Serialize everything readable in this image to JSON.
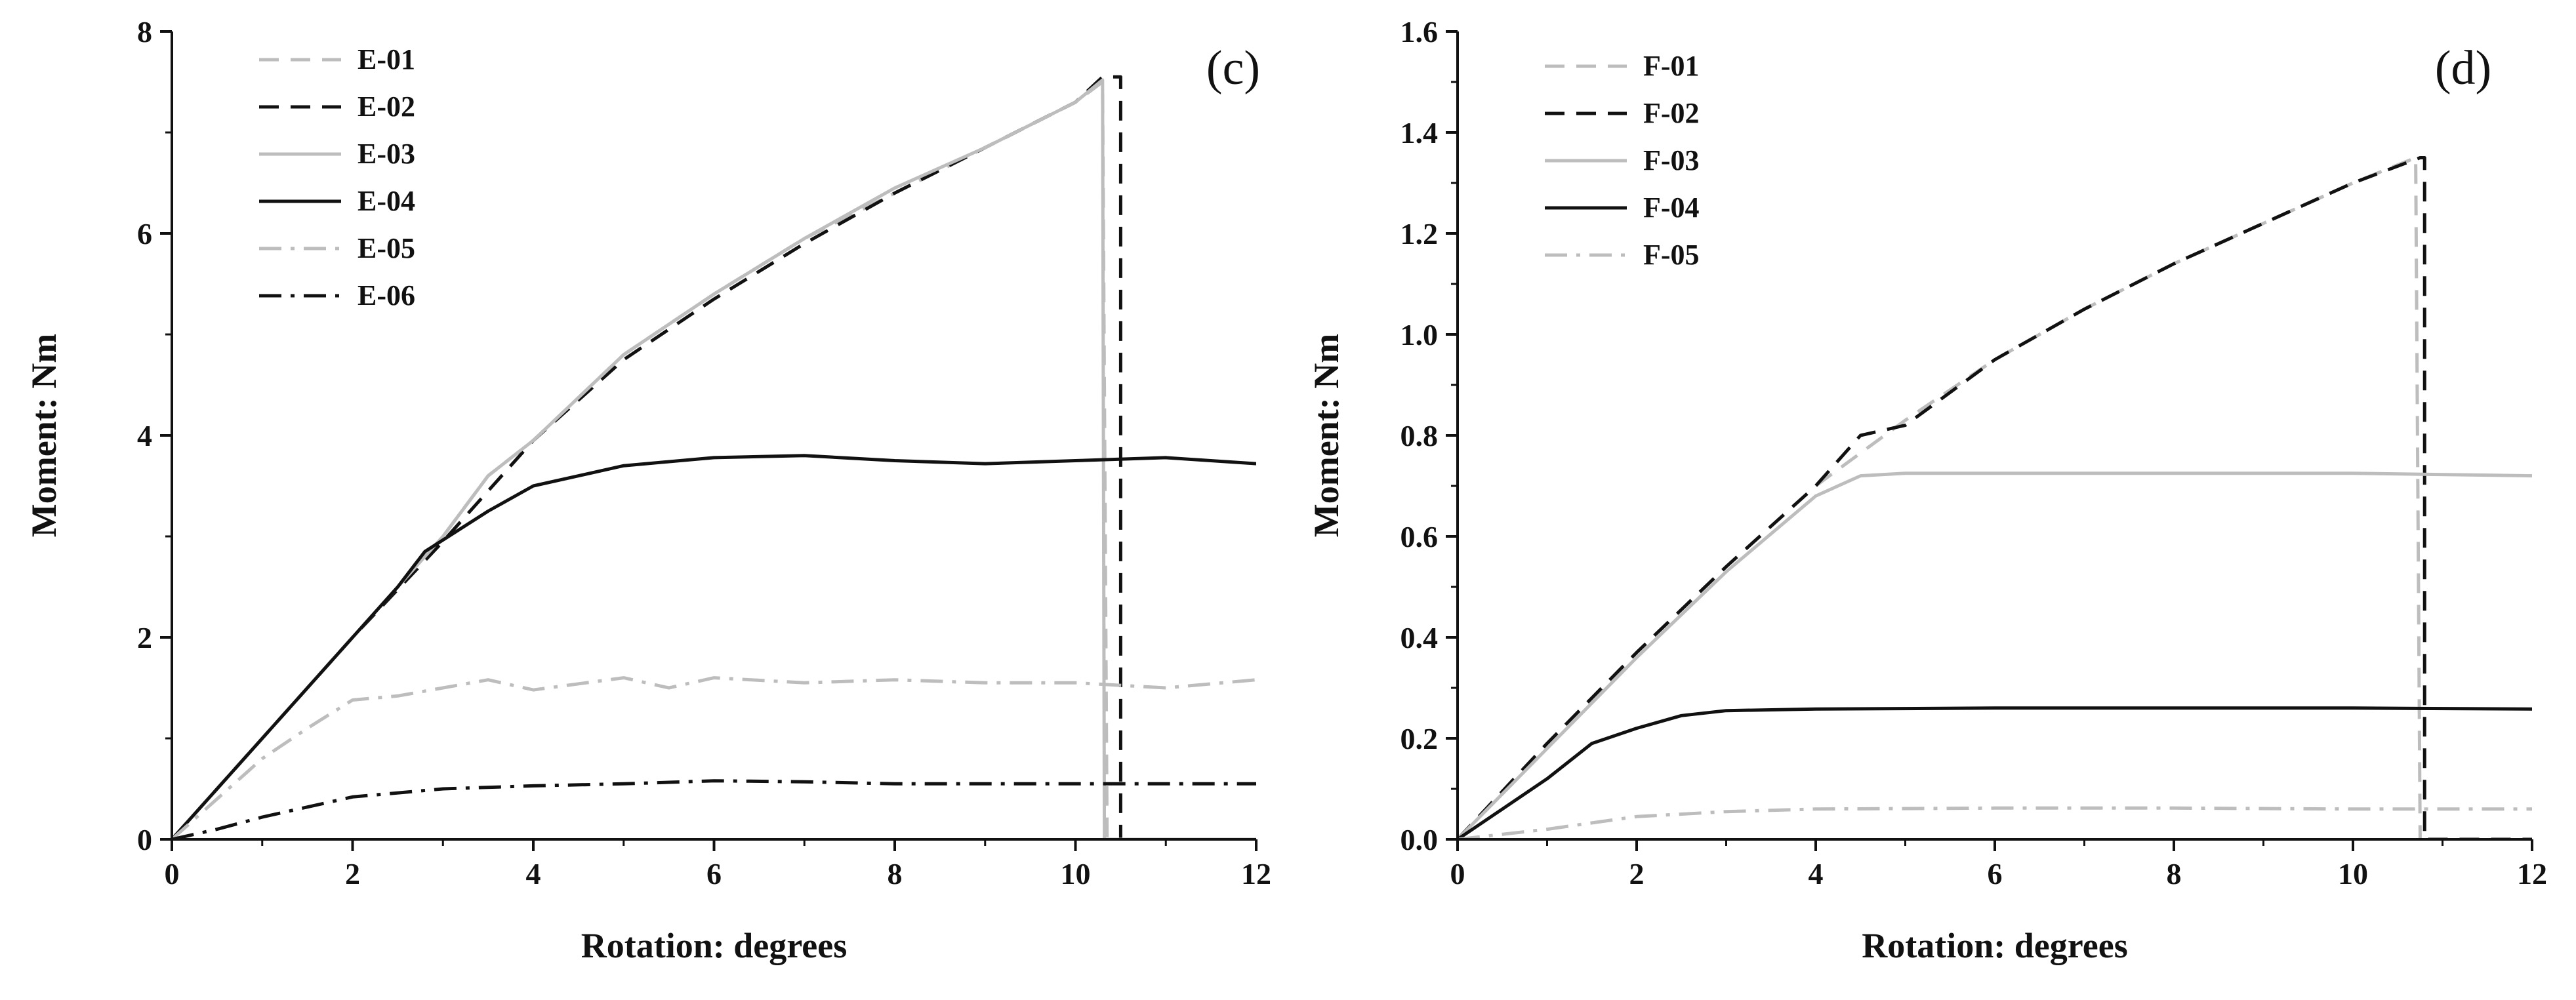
{
  "chart_data": [
    {
      "type": "line",
      "panel_label": "(c)",
      "xlabel": "Rotation: degrees",
      "ylabel": "Moment: Nm",
      "xlim": [
        0,
        12
      ],
      "ylim": [
        0,
        8
      ],
      "xticks": [
        0,
        2,
        4,
        6,
        8,
        10,
        12
      ],
      "yticks": [
        0,
        2,
        4,
        6,
        8
      ],
      "xtick_labels": [
        "0",
        "2",
        "4",
        "6",
        "8",
        "10",
        "12"
      ],
      "ytick_labels": [
        "0",
        "2",
        "4",
        "6",
        "8"
      ],
      "legend_position": "top-left",
      "series": [
        {
          "name": "E-01",
          "color": "#bdbdbd",
          "style": "dashed",
          "points": [
            [
              0,
              0
            ],
            [
              1,
              1.0
            ],
            [
              2,
              2.0
            ],
            [
              3,
              3.0
            ],
            [
              3.5,
              3.6
            ],
            [
              4,
              3.95
            ],
            [
              5,
              4.8
            ],
            [
              6,
              5.4
            ],
            [
              7,
              5.95
            ],
            [
              8,
              6.4
            ],
            [
              9,
              6.85
            ],
            [
              10,
              7.3
            ],
            [
              10.3,
              7.5
            ],
            [
              10.35,
              0
            ]
          ]
        },
        {
          "name": "E-02",
          "color": "#111111",
          "style": "dashed",
          "points": [
            [
              0,
              0
            ],
            [
              1,
              1.0
            ],
            [
              2,
              2.0
            ],
            [
              3,
              2.95
            ],
            [
              4,
              3.95
            ],
            [
              5,
              4.75
            ],
            [
              6,
              5.35
            ],
            [
              7,
              5.9
            ],
            [
              8,
              6.4
            ],
            [
              9,
              6.85
            ],
            [
              10,
              7.3
            ],
            [
              10.3,
              7.55
            ],
            [
              10.5,
              7.55
            ],
            [
              10.5,
              0
            ]
          ]
        },
        {
          "name": "E-03",
          "color": "#bdbdbd",
          "style": "solid",
          "points": [
            [
              0,
              0
            ],
            [
              1,
              1.0
            ],
            [
              2,
              2.0
            ],
            [
              3,
              3.0
            ],
            [
              3.5,
              3.6
            ],
            [
              4,
              3.95
            ],
            [
              5,
              4.8
            ],
            [
              6,
              5.4
            ],
            [
              7,
              5.95
            ],
            [
              8,
              6.45
            ],
            [
              9,
              6.85
            ],
            [
              10,
              7.3
            ],
            [
              10.3,
              7.52
            ],
            [
              10.32,
              0
            ],
            [
              12,
              0
            ]
          ]
        },
        {
          "name": "E-04",
          "color": "#111111",
          "style": "solid",
          "points": [
            [
              0,
              0
            ],
            [
              1,
              1.0
            ],
            [
              2,
              2.0
            ],
            [
              2.5,
              2.5
            ],
            [
              2.8,
              2.85
            ],
            [
              3.5,
              3.25
            ],
            [
              4,
              3.5
            ],
            [
              5,
              3.7
            ],
            [
              6,
              3.78
            ],
            [
              7,
              3.8
            ],
            [
              8,
              3.75
            ],
            [
              9,
              3.72
            ],
            [
              10,
              3.75
            ],
            [
              11,
              3.78
            ],
            [
              12,
              3.72
            ]
          ]
        },
        {
          "name": "E-05",
          "color": "#bdbdbd",
          "style": "dashdot",
          "points": [
            [
              0,
              0
            ],
            [
              0.5,
              0.4
            ],
            [
              1,
              0.8
            ],
            [
              1.5,
              1.1
            ],
            [
              2,
              1.38
            ],
            [
              2.5,
              1.42
            ],
            [
              3,
              1.5
            ],
            [
              3.5,
              1.58
            ],
            [
              4,
              1.48
            ],
            [
              5,
              1.6
            ],
            [
              5.5,
              1.5
            ],
            [
              6,
              1.6
            ],
            [
              7,
              1.55
            ],
            [
              8,
              1.58
            ],
            [
              9,
              1.55
            ],
            [
              10,
              1.55
            ],
            [
              11,
              1.5
            ],
            [
              12,
              1.58
            ]
          ]
        },
        {
          "name": "E-06",
          "color": "#111111",
          "style": "dashdot",
          "points": [
            [
              0,
              0
            ],
            [
              0.5,
              0.1
            ],
            [
              1,
              0.22
            ],
            [
              2,
              0.42
            ],
            [
              3,
              0.5
            ],
            [
              4,
              0.53
            ],
            [
              5,
              0.55
            ],
            [
              6,
              0.58
            ],
            [
              7,
              0.57
            ],
            [
              8,
              0.55
            ],
            [
              9,
              0.55
            ],
            [
              10,
              0.55
            ],
            [
              11,
              0.55
            ],
            [
              12,
              0.55
            ]
          ]
        }
      ]
    },
    {
      "type": "line",
      "panel_label": "(d)",
      "xlabel": "Rotation: degrees",
      "ylabel": "Moment: Nm",
      "xlim": [
        0,
        12
      ],
      "ylim": [
        0,
        1.6
      ],
      "xticks": [
        0,
        2,
        4,
        6,
        8,
        10,
        12
      ],
      "yticks": [
        0,
        0.2,
        0.4,
        0.6,
        0.8,
        1.0,
        1.2,
        1.4,
        1.6
      ],
      "xtick_labels": [
        "0",
        "2",
        "4",
        "6",
        "8",
        "10",
        "12"
      ],
      "ytick_labels": [
        "0.0",
        "0.2",
        "0.4",
        "0.6",
        "0.8",
        "1.0",
        "1.2",
        "1.4",
        "1.6"
      ],
      "legend_position": "top-left",
      "series": [
        {
          "name": "F-01",
          "color": "#bdbdbd",
          "style": "dashed",
          "points": [
            [
              0,
              0
            ],
            [
              1,
              0.19
            ],
            [
              2,
              0.37
            ],
            [
              3,
              0.54
            ],
            [
              4,
              0.7
            ],
            [
              5,
              0.83
            ],
            [
              6,
              0.95
            ],
            [
              7,
              1.05
            ],
            [
              8,
              1.14
            ],
            [
              9,
              1.22
            ],
            [
              10,
              1.3
            ],
            [
              10.7,
              1.35
            ],
            [
              10.75,
              0
            ]
          ]
        },
        {
          "name": "F-02",
          "color": "#111111",
          "style": "dashed",
          "points": [
            [
              0,
              0
            ],
            [
              1,
              0.19
            ],
            [
              2,
              0.37
            ],
            [
              3,
              0.54
            ],
            [
              4,
              0.7
            ],
            [
              4.5,
              0.8
            ],
            [
              5,
              0.82
            ],
            [
              6,
              0.95
            ],
            [
              7,
              1.05
            ],
            [
              8,
              1.14
            ],
            [
              9,
              1.22
            ],
            [
              10,
              1.3
            ],
            [
              10.75,
              1.35
            ],
            [
              10.8,
              1.35
            ],
            [
              10.8,
              0
            ],
            [
              12,
              0
            ]
          ]
        },
        {
          "name": "F-03",
          "color": "#bdbdbd",
          "style": "solid",
          "points": [
            [
              0,
              0
            ],
            [
              1,
              0.18
            ],
            [
              2,
              0.36
            ],
            [
              3,
              0.53
            ],
            [
              4,
              0.68
            ],
            [
              4.5,
              0.72
            ],
            [
              5,
              0.725
            ],
            [
              6,
              0.725
            ],
            [
              8,
              0.725
            ],
            [
              10,
              0.725
            ],
            [
              12,
              0.72
            ]
          ]
        },
        {
          "name": "F-04",
          "color": "#111111",
          "style": "solid",
          "points": [
            [
              0,
              0
            ],
            [
              0.5,
              0.06
            ],
            [
              1,
              0.12
            ],
            [
              1.5,
              0.19
            ],
            [
              2,
              0.22
            ],
            [
              2.5,
              0.245
            ],
            [
              3,
              0.255
            ],
            [
              4,
              0.258
            ],
            [
              6,
              0.26
            ],
            [
              8,
              0.26
            ],
            [
              10,
              0.26
            ],
            [
              12,
              0.258
            ]
          ]
        },
        {
          "name": "F-05",
          "color": "#bdbdbd",
          "style": "dashdot",
          "points": [
            [
              0,
              0
            ],
            [
              1,
              0.02
            ],
            [
              2,
              0.045
            ],
            [
              3,
              0.055
            ],
            [
              4,
              0.06
            ],
            [
              6,
              0.062
            ],
            [
              8,
              0.062
            ],
            [
              10,
              0.06
            ],
            [
              12,
              0.06
            ]
          ]
        }
      ]
    }
  ]
}
